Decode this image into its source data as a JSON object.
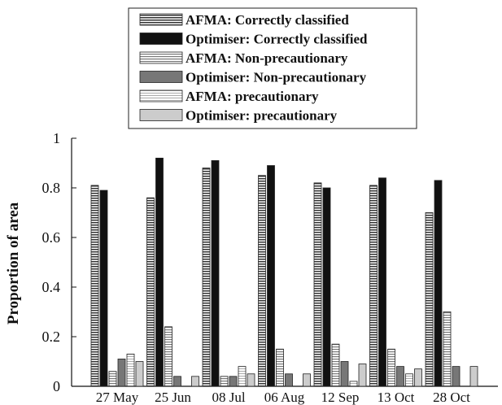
{
  "chart_data": {
    "type": "bar",
    "ylabel": "Proportion of area",
    "xlabel": "",
    "title": "",
    "ylim": [
      0,
      1
    ],
    "yticks": [
      "0",
      "0.2",
      "0.4",
      "0.6",
      "0.8",
      "1"
    ],
    "categories": [
      "27 May",
      "25 Jun",
      "08 Jul",
      "06 Aug",
      "12 Sep",
      "13 Oct",
      "28 Oct"
    ],
    "legend_position": "top-center",
    "grid": false,
    "series": [
      {
        "name": "AFMA: Correctly classified",
        "pattern": "hstripe-dense",
        "values": [
          0.81,
          0.76,
          0.88,
          0.85,
          0.82,
          0.81,
          0.7
        ]
      },
      {
        "name": "Optimiser: Correctly classified",
        "pattern": "solid-black",
        "values": [
          0.79,
          0.92,
          0.91,
          0.89,
          0.8,
          0.84,
          0.83
        ]
      },
      {
        "name": "AFMA: Non-precautionary",
        "pattern": "hstripe-medium",
        "values": [
          0.06,
          0.24,
          0.04,
          0.15,
          0.17,
          0.15,
          0.3
        ]
      },
      {
        "name": "Optimiser: Non-precautionary",
        "pattern": "solid-gray",
        "values": [
          0.11,
          0.04,
          0.04,
          0.05,
          0.1,
          0.08,
          0.08
        ]
      },
      {
        "name": "AFMA: precautionary",
        "pattern": "hstripe-light",
        "values": [
          0.13,
          0.0,
          0.08,
          0.0,
          0.02,
          0.05,
          0.0
        ]
      },
      {
        "name": "Optimiser: precautionary",
        "pattern": "solid-light",
        "values": [
          0.1,
          0.04,
          0.05,
          0.05,
          0.09,
          0.07,
          0.08
        ]
      }
    ]
  }
}
